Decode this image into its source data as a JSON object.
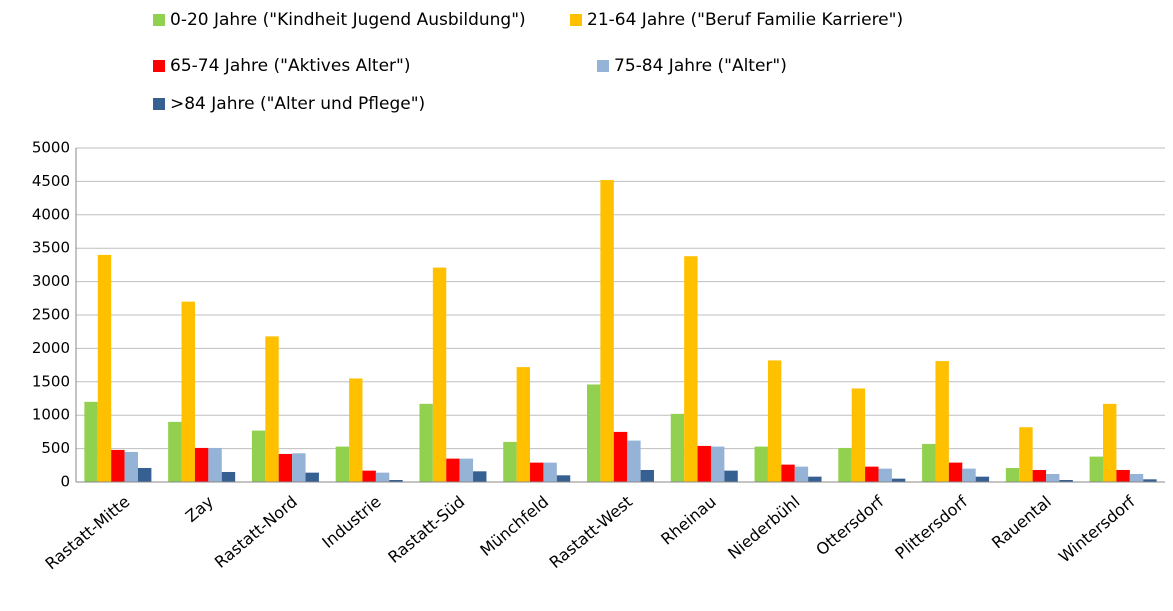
{
  "chart_data": {
    "type": "bar",
    "categories": [
      "Rastatt-Mitte",
      "Zay",
      "Rastatt-Nord",
      "Industrie",
      "Rastatt-Süd",
      "Münchfeld",
      "Rastatt-West",
      "Rheinau",
      "Niederbühl",
      "Ottersdorf",
      "Plittersdorf",
      "Rauental",
      "Wintersdorf"
    ],
    "series": [
      {
        "name": "0-20 Jahre (\"Kindheit Jugend Ausbildung\")",
        "color": "#92d050",
        "values": [
          1200,
          900,
          770,
          530,
          1170,
          600,
          1460,
          1020,
          530,
          510,
          570,
          210,
          380
        ]
      },
      {
        "name": "21-64 Jahre (\"Beruf Familie Karriere\")",
        "color": "#ffc000",
        "values": [
          3400,
          2700,
          2180,
          1550,
          3210,
          1720,
          4520,
          3380,
          1820,
          1400,
          1810,
          820,
          1170
        ]
      },
      {
        "name": "65-74 Jahre (\"Aktives Alter\")",
        "color": "#ff0000",
        "values": [
          480,
          510,
          420,
          170,
          350,
          290,
          750,
          540,
          260,
          230,
          290,
          180,
          180
        ]
      },
      {
        "name": "75-84 Jahre (\"Alter\")",
        "color": "#95b3d7",
        "values": [
          450,
          510,
          430,
          140,
          350,
          290,
          620,
          530,
          230,
          200,
          200,
          120,
          120
        ]
      },
      {
        "name": ">84 Jahre (\"Alter und Pflege\")",
        "color": "#376092",
        "values": [
          210,
          150,
          140,
          30,
          160,
          100,
          180,
          170,
          80,
          50,
          80,
          30,
          40
        ]
      }
    ],
    "ylim": [
      0,
      5000
    ],
    "yticks": [
      0,
      500,
      1000,
      1500,
      2000,
      2500,
      3000,
      3500,
      4000,
      4500,
      5000
    ],
    "grid": true,
    "legend": "top"
  }
}
